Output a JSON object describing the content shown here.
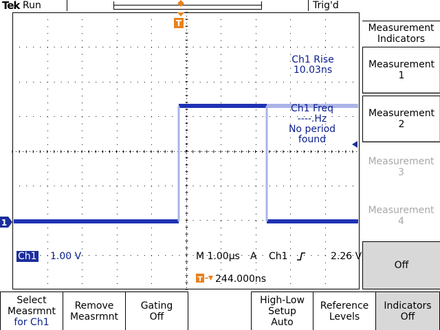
{
  "header": {
    "brand": "Tek",
    "run_state": "Run",
    "trigger_state": "Trig'd"
  },
  "colors": {
    "trace": "#1e32b4",
    "trace_light": "#aab4e8",
    "trigger_marker": "#e8821e",
    "channel_badge": "#1c2e9c",
    "grid": "#000000"
  },
  "icons": {
    "trigger_position": "t-marker-icon",
    "channel_ground": "channel-1-ground-marker-icon",
    "trigger_level": "trigger-level-arrow-icon",
    "rising_edge": "rising-edge-icon"
  },
  "markers": {
    "trigger_label": "T",
    "channel_label": "1"
  },
  "measurements": {
    "rise": {
      "label": "Ch1 Rise",
      "value": "10.03ns"
    },
    "freq": {
      "label": "Ch1 Freq",
      "value": "----.Hz",
      "status_line1": "No period",
      "status_line2": "found"
    }
  },
  "status": {
    "channel": "Ch1",
    "volts_per_div": "1.00 V",
    "timebase": "M 1.00µs",
    "trigger_mode": "A",
    "trigger_source": "Ch1",
    "trigger_level": "2.26 V",
    "trigger_position": "244.000ns"
  },
  "side_menu": {
    "title_line1": "Measurement",
    "title_line2": "Indicators",
    "items": [
      {
        "line1": "Measurement",
        "line2": "1",
        "state": "active"
      },
      {
        "line1": "Measurement",
        "line2": "2",
        "state": "active"
      },
      {
        "line1": "Measurement",
        "line2": "3",
        "state": "dim"
      },
      {
        "line1": "Measurement",
        "line2": "4",
        "state": "dim"
      },
      {
        "line1": "Off",
        "line2": "",
        "state": "selected"
      }
    ]
  },
  "bottom_menu": [
    {
      "line1": "Select",
      "line2": "Measrmnt",
      "line3": "for Ch1"
    },
    {
      "line1": "Remove",
      "line2": "Measrmnt",
      "line3": ""
    },
    {
      "line1": "Gating",
      "line2": "Off",
      "line3": ""
    },
    {
      "line1": "High-Low",
      "line2": "Setup",
      "line3": "Auto"
    },
    {
      "line1": "Reference",
      "line2": "Levels",
      "line3": ""
    },
    {
      "line1": "Indicators",
      "line2": "Off",
      "line3": ""
    }
  ]
}
